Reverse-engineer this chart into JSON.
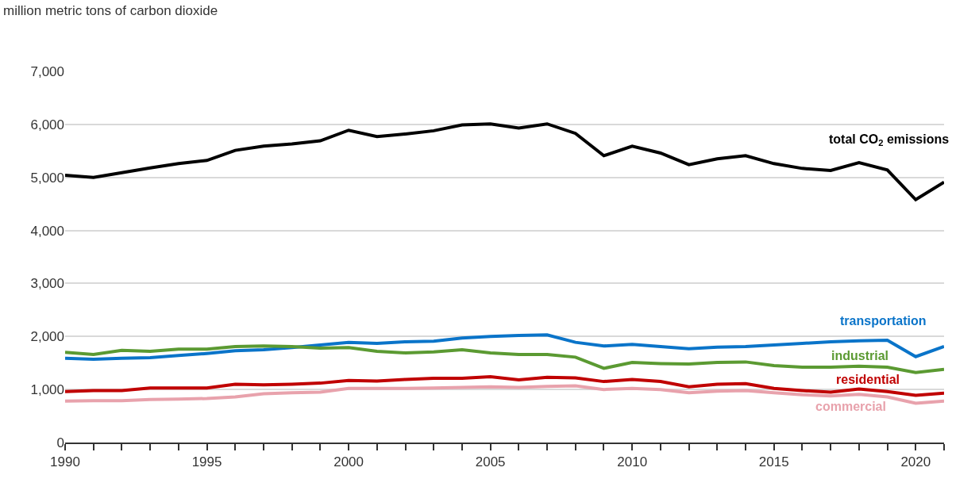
{
  "chart_data": {
    "type": "line",
    "ylabel": "million metric tons of carbon dioxide",
    "x": [
      1990,
      1991,
      1992,
      1993,
      1994,
      1995,
      1996,
      1997,
      1998,
      1999,
      2000,
      2001,
      2002,
      2003,
      2004,
      2005,
      2006,
      2007,
      2008,
      2009,
      2010,
      2011,
      2012,
      2013,
      2014,
      2015,
      2016,
      2017,
      2018,
      2019,
      2020,
      2021
    ],
    "series": [
      {
        "name": "total CO$_{2}$ emissions",
        "color": "#000000",
        "values": [
          5040,
          5000,
          5090,
          5180,
          5260,
          5320,
          5510,
          5590,
          5630,
          5690,
          5890,
          5770,
          5820,
          5880,
          5990,
          6010,
          5930,
          6010,
          5830,
          5410,
          5590,
          5460,
          5240,
          5350,
          5410,
          5260,
          5170,
          5130,
          5280,
          5140,
          4580,
          4910
        ]
      },
      {
        "name": "transportation",
        "color": "#0a74c9",
        "values": [
          1590,
          1570,
          1590,
          1600,
          1640,
          1680,
          1730,
          1750,
          1790,
          1840,
          1890,
          1870,
          1900,
          1910,
          1970,
          2000,
          2020,
          2030,
          1890,
          1820,
          1850,
          1810,
          1770,
          1800,
          1810,
          1840,
          1870,
          1900,
          1920,
          1930,
          1620,
          1810
        ]
      },
      {
        "name": "industrial",
        "color": "#5b9a32",
        "values": [
          1700,
          1660,
          1740,
          1720,
          1760,
          1760,
          1810,
          1820,
          1810,
          1780,
          1790,
          1720,
          1690,
          1710,
          1750,
          1690,
          1660,
          1660,
          1610,
          1400,
          1510,
          1490,
          1480,
          1510,
          1520,
          1450,
          1420,
          1420,
          1440,
          1420,
          1320,
          1380
        ]
      },
      {
        "name": "residential",
        "color": "#c00000",
        "values": [
          960,
          980,
          980,
          1030,
          1030,
          1030,
          1100,
          1090,
          1100,
          1120,
          1170,
          1160,
          1190,
          1210,
          1210,
          1240,
          1180,
          1230,
          1220,
          1150,
          1190,
          1150,
          1050,
          1100,
          1110,
          1020,
          980,
          950,
          1010,
          960,
          890,
          930
        ]
      },
      {
        "name": "commercial",
        "color": "#e8a2ac",
        "values": [
          780,
          790,
          790,
          810,
          820,
          830,
          860,
          920,
          940,
          950,
          1020,
          1020,
          1020,
          1030,
          1040,
          1050,
          1040,
          1060,
          1070,
          1000,
          1020,
          1000,
          940,
          970,
          980,
          940,
          900,
          880,
          910,
          860,
          740,
          780
        ]
      }
    ],
    "xlim": [
      1990,
      2021
    ],
    "xticks": [
      1990,
      {
        "value": 1991,
        "label": null
      },
      {
        "value": 1992,
        "label": null
      },
      {
        "value": 1993,
        "label": null
      },
      {
        "value": 1994,
        "label": null
      },
      1995,
      {
        "value": 1996,
        "label": null
      },
      {
        "value": 1997,
        "label": null
      },
      {
        "value": 1998,
        "label": null
      },
      {
        "value": 1999,
        "label": null
      },
      2000,
      {
        "value": 2001,
        "label": null
      },
      {
        "value": 2002,
        "label": null
      },
      {
        "value": 2003,
        "label": null
      },
      {
        "value": 2004,
        "label": null
      },
      2005,
      {
        "value": 2006,
        "label": null
      },
      {
        "value": 2007,
        "label": null
      },
      {
        "value": 2008,
        "label": null
      },
      {
        "value": 2009,
        "label": null
      },
      2010,
      {
        "value": 2011,
        "label": null
      },
      {
        "value": 2012,
        "label": null
      },
      {
        "value": 2013,
        "label": null
      },
      {
        "value": 2014,
        "label": null
      },
      2015,
      {
        "value": 2016,
        "label": null
      },
      {
        "value": 2017,
        "label": null
      },
      {
        "value": 2018,
        "label": null
      },
      {
        "value": 2019,
        "label": null
      },
      2020,
      {
        "value": 2021,
        "label": null
      }
    ],
    "ylim": [
      0,
      7000
    ],
    "yticks": [
      {
        "value": 0,
        "label": "0"
      },
      {
        "value": 1000,
        "label": "1,000"
      },
      {
        "value": 2000,
        "label": "2,000"
      },
      {
        "value": 3000,
        "label": "3,000"
      },
      {
        "value": 4000,
        "label": "4,000"
      },
      {
        "value": 5000,
        "label": "5,000"
      },
      {
        "value": 6000,
        "label": "6,000"
      },
      {
        "value": 7000,
        "label": "7,000"
      }
    ],
    "grid": "y",
    "legend": false,
    "marker": "none",
    "line_style": "solid"
  }
}
